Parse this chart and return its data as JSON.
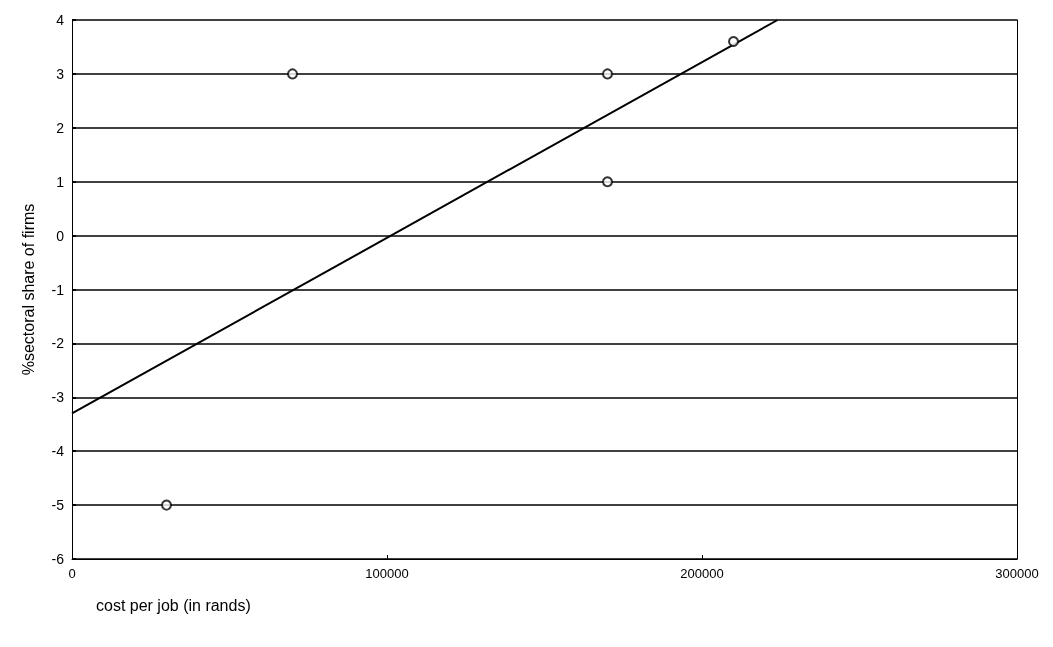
{
  "chart_data": {
    "type": "scatter",
    "xlabel": "cost per job (in rands)",
    "ylabel": "%sectoral share of firms",
    "series": [
      {
        "marker": "circle",
        "color": "#000000",
        "x": [
          30000,
          70000,
          170000,
          170000,
          210000
        ],
        "values": [
          -5,
          3,
          3,
          1,
          3.6
        ]
      },
      {
        "type": "line",
        "marker": "none",
        "line_style": "solid",
        "color": "#000000",
        "x": [
          0,
          224000
        ],
        "values": [
          -3.3,
          4
        ]
      }
    ],
    "xlim": [
      0,
      300000
    ],
    "xticks": [
      0,
      100000,
      200000,
      300000
    ],
    "ylim": [
      -6,
      4
    ],
    "yticks": [
      -6,
      -5,
      -4,
      -3,
      -2,
      -1,
      0,
      1,
      2,
      3,
      4
    ],
    "grid": "y"
  }
}
